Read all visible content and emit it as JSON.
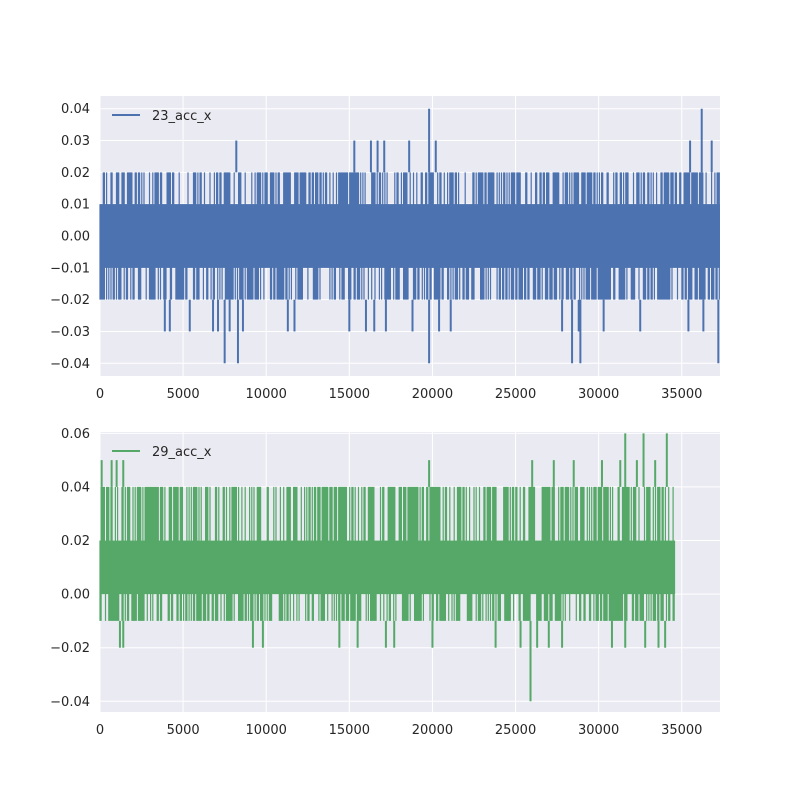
{
  "chart_data": [
    {
      "type": "line",
      "series": [
        {
          "name": "23_acc_x",
          "color": "#4c72b0",
          "x_extent": [
            0,
            37300
          ],
          "band_low": -0.02,
          "band_high": 0.02,
          "core_low": -0.01,
          "core_high": 0.01,
          "spikes": [
            {
              "x": 19800,
              "y": 0.04
            },
            {
              "x": 36200,
              "y": 0.04
            },
            {
              "x": 8200,
              "y": 0.03
            },
            {
              "x": 15300,
              "y": 0.03
            },
            {
              "x": 16300,
              "y": 0.03
            },
            {
              "x": 16700,
              "y": 0.03
            },
            {
              "x": 17100,
              "y": 0.03
            },
            {
              "x": 18600,
              "y": 0.03
            },
            {
              "x": 20200,
              "y": 0.03
            },
            {
              "x": 35500,
              "y": 0.03
            },
            {
              "x": 36800,
              "y": 0.03
            },
            {
              "x": 3900,
              "y": -0.03
            },
            {
              "x": 4200,
              "y": -0.03
            },
            {
              "x": 5400,
              "y": -0.03
            },
            {
              "x": 6800,
              "y": -0.03
            },
            {
              "x": 7100,
              "y": -0.03
            },
            {
              "x": 7800,
              "y": -0.03
            },
            {
              "x": 8600,
              "y": -0.03
            },
            {
              "x": 11300,
              "y": -0.03
            },
            {
              "x": 11700,
              "y": -0.03
            },
            {
              "x": 15000,
              "y": -0.03
            },
            {
              "x": 16000,
              "y": -0.03
            },
            {
              "x": 16500,
              "y": -0.03
            },
            {
              "x": 17200,
              "y": -0.03
            },
            {
              "x": 18800,
              "y": -0.03
            },
            {
              "x": 20400,
              "y": -0.03
            },
            {
              "x": 21100,
              "y": -0.03
            },
            {
              "x": 27800,
              "y": -0.03
            },
            {
              "x": 28800,
              "y": -0.03
            },
            {
              "x": 30300,
              "y": -0.03
            },
            {
              "x": 32500,
              "y": -0.03
            },
            {
              "x": 35400,
              "y": -0.03
            },
            {
              "x": 36300,
              "y": -0.03
            },
            {
              "x": 7500,
              "y": -0.04
            },
            {
              "x": 8300,
              "y": -0.04
            },
            {
              "x": 19800,
              "y": -0.04
            },
            {
              "x": 28400,
              "y": -0.04
            },
            {
              "x": 28900,
              "y": -0.04
            },
            {
              "x": 37200,
              "y": -0.04
            }
          ]
        }
      ],
      "x_ticks": [
        "0",
        "5000",
        "10000",
        "15000",
        "20000",
        "25000",
        "30000",
        "35000"
      ],
      "y_ticks": [
        "0.04",
        "0.03",
        "0.02",
        "0.01",
        "0.00",
        "−0.01",
        "−0.02",
        "−0.03",
        "−0.04"
      ],
      "xlim": [
        0,
        37300
      ],
      "ylim": [
        -0.044,
        0.044
      ],
      "grid": true,
      "legend": "upper-left"
    },
    {
      "type": "line",
      "series": [
        {
          "name": "29_acc_x",
          "color": "#55a868",
          "x_extent": [
            0,
            34600
          ],
          "band_low": -0.01,
          "band_high": 0.04,
          "core_low": 0.0,
          "core_high": 0.02,
          "spikes": [
            {
              "x": 31600,
              "y": 0.06
            },
            {
              "x": 32700,
              "y": 0.06
            },
            {
              "x": 34100,
              "y": 0.06
            },
            {
              "x": 100,
              "y": 0.05
            },
            {
              "x": 700,
              "y": 0.05
            },
            {
              "x": 1000,
              "y": 0.05
            },
            {
              "x": 1400,
              "y": 0.05
            },
            {
              "x": 19800,
              "y": 0.05
            },
            {
              "x": 26000,
              "y": 0.05
            },
            {
              "x": 27300,
              "y": 0.05
            },
            {
              "x": 28500,
              "y": 0.05
            },
            {
              "x": 30200,
              "y": 0.05
            },
            {
              "x": 31300,
              "y": 0.05
            },
            {
              "x": 32300,
              "y": 0.05
            },
            {
              "x": 33400,
              "y": 0.05
            },
            {
              "x": 9200,
              "y": 0.04
            },
            {
              "x": 14200,
              "y": 0.04
            },
            {
              "x": 16300,
              "y": 0.04
            },
            {
              "x": 1200,
              "y": -0.02
            },
            {
              "x": 1400,
              "y": -0.02
            },
            {
              "x": 9200,
              "y": -0.02
            },
            {
              "x": 9800,
              "y": -0.02
            },
            {
              "x": 14400,
              "y": -0.02
            },
            {
              "x": 15500,
              "y": -0.02
            },
            {
              "x": 17200,
              "y": -0.02
            },
            {
              "x": 17700,
              "y": -0.02
            },
            {
              "x": 20000,
              "y": -0.02
            },
            {
              "x": 23800,
              "y": -0.02
            },
            {
              "x": 25300,
              "y": -0.02
            },
            {
              "x": 26300,
              "y": -0.02
            },
            {
              "x": 27000,
              "y": -0.02
            },
            {
              "x": 27800,
              "y": -0.02
            },
            {
              "x": 30800,
              "y": -0.02
            },
            {
              "x": 31600,
              "y": -0.02
            },
            {
              "x": 32800,
              "y": -0.02
            },
            {
              "x": 33600,
              "y": -0.02
            },
            {
              "x": 34000,
              "y": -0.02
            },
            {
              "x": 25900,
              "y": -0.04
            }
          ]
        }
      ],
      "x_ticks": [
        "0",
        "5000",
        "10000",
        "15000",
        "20000",
        "25000",
        "30000",
        "35000"
      ],
      "y_ticks": [
        "0.06",
        "0.04",
        "0.02",
        "0.00",
        "−0.02",
        "−0.04"
      ],
      "xlim": [
        0,
        37300
      ],
      "ylim": [
        -0.044,
        0.0605
      ],
      "grid": true,
      "legend": "upper-left"
    }
  ]
}
